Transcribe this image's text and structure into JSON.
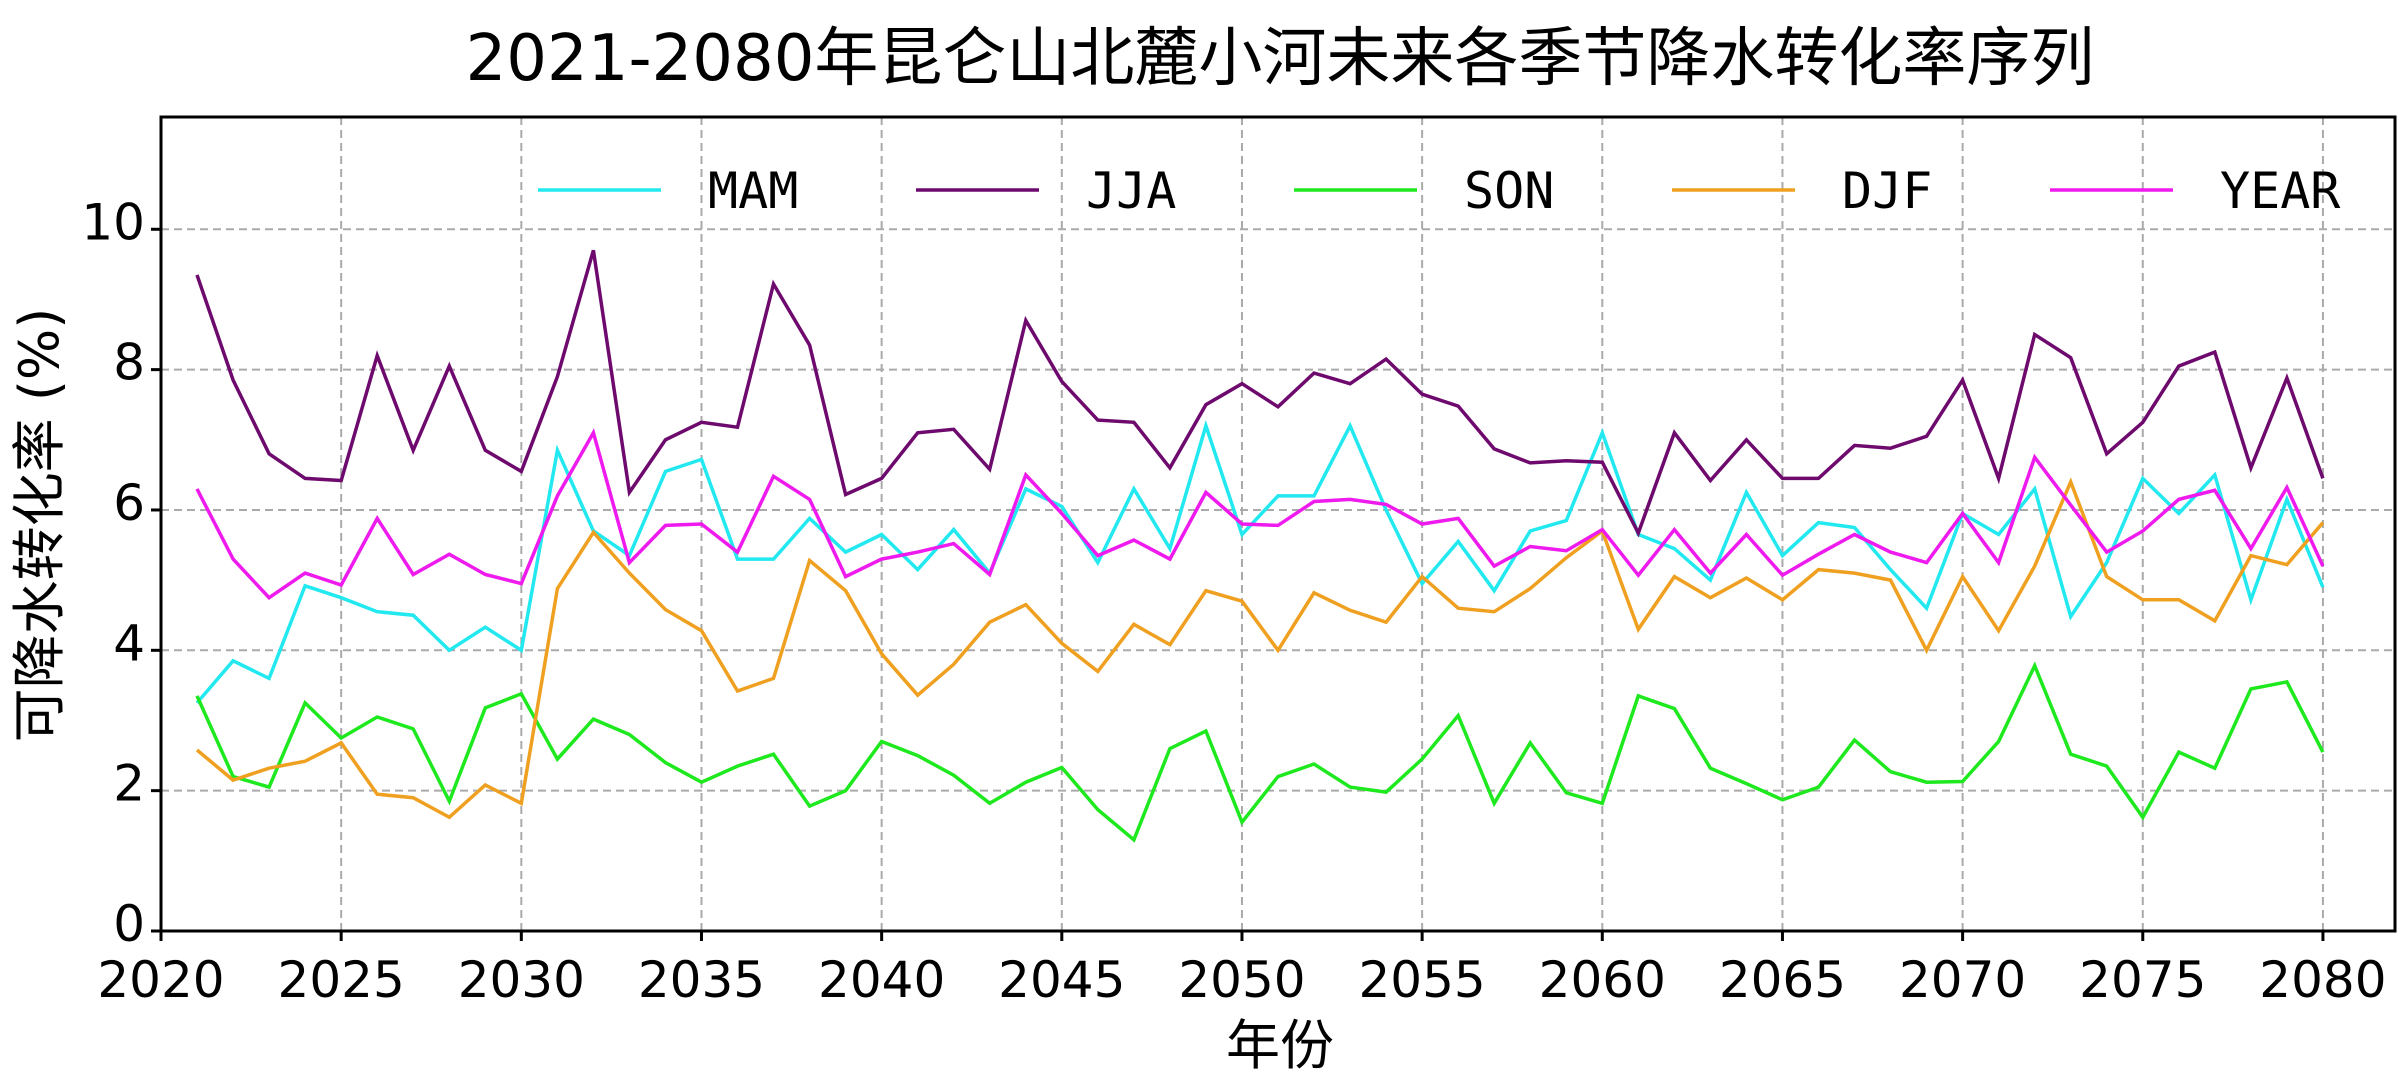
{
  "chart_data": {
    "type": "line",
    "title": "2021-2080年昆仑山北麓小河未来各季节降水转化率序列",
    "xlabel": "年份",
    "ylabel": "可降水转化率 (%)",
    "xlim": [
      2020,
      2082
    ],
    "ylim": [
      0,
      11.6
    ],
    "xticks": [
      2020,
      2025,
      2030,
      2035,
      2040,
      2045,
      2050,
      2055,
      2060,
      2065,
      2070,
      2075,
      2080
    ],
    "yticks": [
      0,
      2,
      4,
      6,
      8,
      10
    ],
    "grid": true,
    "legend_placement": "top",
    "x_start": 2021,
    "series": [
      {
        "name": "MAM",
        "color": "#22e8f0",
        "values": [
          3.25,
          3.85,
          3.6,
          4.92,
          4.75,
          4.55,
          4.5,
          4.0,
          4.33,
          4.0,
          6.85,
          5.7,
          5.35,
          6.55,
          6.72,
          5.3,
          5.3,
          5.88,
          5.4,
          5.65,
          5.15,
          5.72,
          5.1,
          6.3,
          6.05,
          5.25,
          6.3,
          5.45,
          7.2,
          5.65,
          6.2,
          6.2,
          7.2,
          6.0,
          4.95,
          5.55,
          4.85,
          5.7,
          5.85,
          7.1,
          5.65,
          5.45,
          5.0,
          6.25,
          5.35,
          5.82,
          5.75,
          5.15,
          4.6,
          5.95,
          5.65,
          6.3,
          4.48,
          5.25,
          6.45,
          5.95,
          6.5,
          4.72,
          6.15,
          4.9
        ]
      },
      {
        "name": "JJA",
        "color": "#6e0a6e",
        "values": [
          9.35,
          7.85,
          6.8,
          6.45,
          6.42,
          8.2,
          6.85,
          8.05,
          6.85,
          6.55,
          7.9,
          9.7,
          6.25,
          7.0,
          7.25,
          7.18,
          9.22,
          8.35,
          6.22,
          6.45,
          7.1,
          7.15,
          6.58,
          8.7,
          7.83,
          7.28,
          7.25,
          6.6,
          7.5,
          7.8,
          7.47,
          7.95,
          7.8,
          8.15,
          7.65,
          7.48,
          6.87,
          6.67,
          6.7,
          6.68,
          5.67,
          7.1,
          6.42,
          7.0,
          6.45,
          6.45,
          6.92,
          6.88,
          7.05,
          7.85,
          6.45,
          8.5,
          8.17,
          6.8,
          7.25,
          8.05,
          8.25,
          6.6,
          7.88,
          6.45
        ]
      },
      {
        "name": "SON",
        "color": "#1ee81e",
        "values": [
          3.35,
          2.2,
          2.05,
          3.25,
          2.75,
          3.05,
          2.88,
          1.85,
          3.18,
          3.38,
          2.45,
          3.02,
          2.8,
          2.4,
          2.12,
          2.35,
          2.52,
          1.78,
          2.0,
          2.7,
          2.5,
          2.22,
          1.82,
          2.12,
          2.33,
          1.73,
          1.3,
          2.6,
          2.85,
          1.55,
          2.2,
          2.38,
          2.05,
          1.98,
          2.45,
          3.07,
          1.82,
          2.68,
          1.97,
          1.82,
          3.35,
          3.17,
          2.32,
          2.1,
          1.87,
          2.05,
          2.72,
          2.27,
          2.12,
          2.13,
          2.7,
          3.78,
          2.52,
          2.35,
          1.62,
          2.55,
          2.32,
          3.45,
          3.55,
          2.55
        ]
      },
      {
        "name": "DJF",
        "color": "#f0a020",
        "values": [
          2.58,
          2.15,
          2.32,
          2.42,
          2.68,
          1.95,
          1.9,
          1.62,
          2.08,
          1.82,
          4.88,
          5.68,
          5.1,
          4.58,
          4.28,
          3.42,
          3.6,
          5.28,
          4.85,
          3.95,
          3.36,
          3.8,
          4.4,
          4.65,
          4.1,
          3.7,
          4.37,
          4.08,
          4.85,
          4.7,
          4.0,
          4.82,
          4.57,
          4.4,
          5.05,
          4.6,
          4.55,
          4.88,
          5.32,
          5.7,
          4.3,
          5.05,
          4.75,
          5.03,
          4.72,
          5.15,
          5.1,
          5.0,
          4.0,
          5.05,
          4.28,
          5.2,
          6.4,
          5.05,
          4.72,
          4.72,
          4.42,
          5.35,
          5.22,
          5.82
        ]
      },
      {
        "name": "YEAR",
        "color": "#ee1aee",
        "values": [
          6.3,
          5.3,
          4.75,
          5.1,
          4.93,
          5.88,
          5.08,
          5.37,
          5.08,
          4.95,
          6.2,
          7.1,
          5.25,
          5.78,
          5.8,
          5.4,
          6.48,
          6.15,
          5.05,
          5.3,
          5.4,
          5.52,
          5.08,
          6.5,
          5.95,
          5.35,
          5.57,
          5.3,
          6.25,
          5.8,
          5.78,
          6.12,
          6.15,
          6.08,
          5.8,
          5.88,
          5.2,
          5.48,
          5.42,
          5.72,
          5.07,
          5.72,
          5.1,
          5.65,
          5.07,
          5.37,
          5.65,
          5.4,
          5.25,
          5.95,
          5.25,
          6.75,
          6.07,
          5.4,
          5.7,
          6.15,
          6.28,
          5.45,
          6.32,
          5.2
        ]
      }
    ]
  }
}
